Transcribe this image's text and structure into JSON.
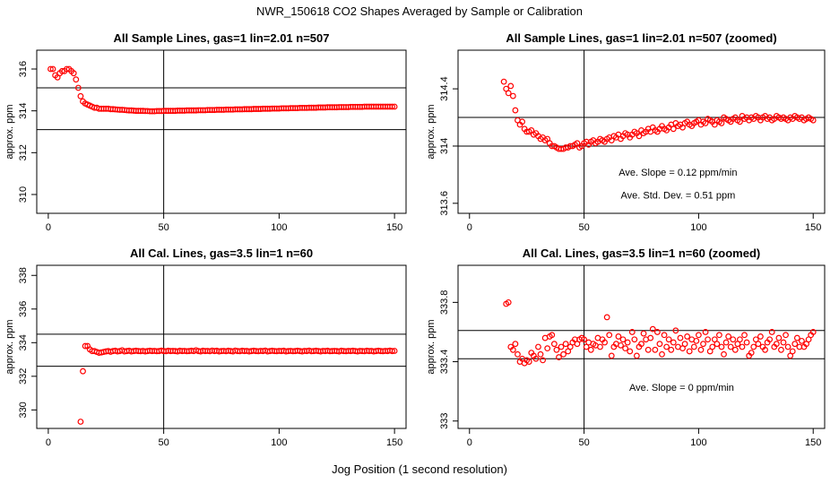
{
  "figure": {
    "title": "NWR_150618  CO2 Shapes Averaged by Sample or Calibration",
    "xlabel": "Jog Position (1 second resolution)"
  },
  "chart_data": [
    {
      "type": "scatter",
      "title": "All Sample Lines, gas=1 lin=2.01 n=507",
      "ylabel": "approx. ppm",
      "xlim": [
        -5,
        155
      ],
      "ylim": [
        309.1,
        316.9
      ],
      "xticks": [
        0,
        50,
        100,
        150
      ],
      "yticks": [
        310,
        312,
        314,
        316
      ],
      "hlines": [
        313.1,
        315.1
      ],
      "vline": 50,
      "marker_color": "#ff0000",
      "annotations": [],
      "x": [
        1,
        2,
        3,
        4,
        5,
        6,
        7,
        8,
        9,
        10,
        11,
        12,
        13,
        14,
        15,
        16,
        17,
        18,
        19,
        20,
        21,
        22,
        23,
        24,
        25,
        26,
        27,
        28,
        29,
        30,
        31,
        32,
        33,
        34,
        35,
        36,
        37,
        38,
        39,
        40,
        41,
        42,
        43,
        44,
        45,
        46,
        47,
        48,
        49,
        50,
        51,
        52,
        53,
        54,
        55,
        56,
        57,
        58,
        59,
        60,
        61,
        62,
        63,
        64,
        65,
        66,
        67,
        68,
        69,
        70,
        71,
        72,
        73,
        74,
        75,
        76,
        77,
        78,
        79,
        80,
        81,
        82,
        83,
        84,
        85,
        86,
        87,
        88,
        89,
        90,
        91,
        92,
        93,
        94,
        95,
        96,
        97,
        98,
        99,
        100,
        101,
        102,
        103,
        104,
        105,
        106,
        107,
        108,
        109,
        110,
        111,
        112,
        113,
        114,
        115,
        116,
        117,
        118,
        119,
        120,
        121,
        122,
        123,
        124,
        125,
        126,
        127,
        128,
        129,
        130,
        131,
        132,
        133,
        134,
        135,
        136,
        137,
        138,
        139,
        140,
        141,
        142,
        143,
        144,
        145,
        146,
        147,
        148,
        149,
        150
      ],
      "y": [
        316.0,
        316.0,
        315.7,
        315.6,
        315.8,
        315.9,
        315.9,
        316.0,
        316.0,
        315.9,
        315.8,
        315.5,
        315.1,
        314.7,
        314.45,
        314.35,
        314.3,
        314.25,
        314.2,
        314.15,
        314.15,
        314.1,
        314.1,
        314.1,
        314.1,
        314.1,
        314.08,
        314.08,
        314.07,
        314.06,
        314.05,
        314.05,
        314.04,
        314.03,
        314.02,
        314.02,
        314.01,
        314.0,
        314.0,
        314.0,
        314.0,
        313.99,
        313.99,
        313.98,
        313.98,
        313.98,
        313.99,
        313.99,
        313.99,
        314.0,
        314.0,
        314.0,
        314.0,
        314.0,
        314.0,
        314.01,
        314.01,
        314.01,
        314.01,
        314.02,
        314.02,
        314.02,
        314.02,
        314.02,
        314.03,
        314.03,
        314.03,
        314.03,
        314.04,
        314.04,
        314.04,
        314.04,
        314.05,
        314.05,
        314.05,
        314.05,
        314.06,
        314.06,
        314.06,
        314.06,
        314.07,
        314.07,
        314.07,
        314.07,
        314.08,
        314.08,
        314.08,
        314.08,
        314.09,
        314.09,
        314.09,
        314.09,
        314.1,
        314.1,
        314.1,
        314.1,
        314.11,
        314.11,
        314.11,
        314.11,
        314.12,
        314.12,
        314.12,
        314.12,
        314.13,
        314.13,
        314.13,
        314.13,
        314.14,
        314.14,
        314.14,
        314.14,
        314.15,
        314.15,
        314.15,
        314.15,
        314.16,
        314.16,
        314.16,
        314.16,
        314.17,
        314.17,
        314.17,
        314.17,
        314.17,
        314.18,
        314.18,
        314.18,
        314.18,
        314.18,
        314.19,
        314.19,
        314.19,
        314.19,
        314.19,
        314.19,
        314.2,
        314.2,
        314.2,
        314.2,
        314.2,
        314.2,
        314.2,
        314.2,
        314.2,
        314.2,
        314.2,
        314.2,
        314.2,
        314.2
      ]
    },
    {
      "type": "scatter",
      "title": "All Sample Lines, gas=1 lin=2.01 n=507 (zoomed)",
      "ylabel": "approx. ppm",
      "xlim": [
        -5,
        155
      ],
      "ylim": [
        313.53,
        314.67
      ],
      "xticks": [
        0,
        50,
        100,
        150
      ],
      "yticks": [
        313.6,
        314.0,
        314.4
      ],
      "hlines": [
        314.0,
        314.2
      ],
      "vline": 50,
      "marker_color": "#ff0000",
      "annotations": [
        "Ave. Slope =  0.12  ppm/min",
        "Ave. Std. Dev. =  0.51  ppm"
      ],
      "x": [
        15,
        16,
        17,
        18,
        19,
        20,
        21,
        22,
        23,
        24,
        25,
        26,
        27,
        28,
        29,
        30,
        31,
        32,
        33,
        34,
        35,
        36,
        37,
        38,
        39,
        40,
        41,
        42,
        43,
        44,
        45,
        46,
        47,
        48,
        49,
        50,
        51,
        52,
        53,
        54,
        55,
        56,
        57,
        58,
        59,
        60,
        61,
        62,
        63,
        64,
        65,
        66,
        67,
        68,
        69,
        70,
        71,
        72,
        73,
        74,
        75,
        76,
        77,
        78,
        79,
        80,
        81,
        82,
        83,
        84,
        85,
        86,
        87,
        88,
        89,
        90,
        91,
        92,
        93,
        94,
        95,
        96,
        97,
        98,
        99,
        100,
        101,
        102,
        103,
        104,
        105,
        106,
        107,
        108,
        109,
        110,
        111,
        112,
        113,
        114,
        115,
        116,
        117,
        118,
        119,
        120,
        121,
        122,
        123,
        124,
        125,
        126,
        127,
        128,
        129,
        130,
        131,
        132,
        133,
        134,
        135,
        136,
        137,
        138,
        139,
        140,
        141,
        142,
        143,
        144,
        145,
        146,
        147,
        148,
        149,
        150
      ],
      "y": [
        314.45,
        314.4,
        314.37,
        314.42,
        314.35,
        314.25,
        314.18,
        314.15,
        314.17,
        314.12,
        314.1,
        314.1,
        314.11,
        314.08,
        314.09,
        314.07,
        314.05,
        314.06,
        314.04,
        314.05,
        314.02,
        314.0,
        314.0,
        313.99,
        313.98,
        313.98,
        313.98,
        313.99,
        313.99,
        314.0,
        314.0,
        314.01,
        314.02,
        313.99,
        314.0,
        314.02,
        314.03,
        314.01,
        314.03,
        314.04,
        314.02,
        314.03,
        314.05,
        314.04,
        314.03,
        314.05,
        314.06,
        314.04,
        314.07,
        314.06,
        314.08,
        314.05,
        314.07,
        314.09,
        314.08,
        314.06,
        314.08,
        314.1,
        314.09,
        314.07,
        314.11,
        314.09,
        314.1,
        314.12,
        314.1,
        314.13,
        314.11,
        314.1,
        314.12,
        314.14,
        314.12,
        314.11,
        314.13,
        314.15,
        314.12,
        314.16,
        314.14,
        314.15,
        314.13,
        314.16,
        314.17,
        314.15,
        314.14,
        314.16,
        314.17,
        314.18,
        314.15,
        314.17,
        314.16,
        314.19,
        314.18,
        314.17,
        314.15,
        314.18,
        314.17,
        314.16,
        314.2,
        314.19,
        314.18,
        314.17,
        314.19,
        314.2,
        314.18,
        314.17,
        314.21,
        314.19,
        314.2,
        314.18,
        314.2,
        314.19,
        314.21,
        314.2,
        314.18,
        314.2,
        314.21,
        314.19,
        314.2,
        314.18,
        314.19,
        314.21,
        314.2,
        314.19,
        314.2,
        314.19,
        314.18,
        314.2,
        314.19,
        314.21,
        314.2,
        314.19,
        314.2,
        314.18,
        314.19,
        314.2,
        314.19,
        314.18
      ]
    },
    {
      "type": "scatter",
      "title": "All Cal. Lines, gas=3.5 lin=1 n=60",
      "ylabel": "approx. ppm",
      "xlim": [
        -5,
        155
      ],
      "ylim": [
        328.9,
        338.6
      ],
      "xticks": [
        0,
        50,
        100,
        150
      ],
      "yticks": [
        330,
        332,
        334,
        336,
        338
      ],
      "hlines": [
        332.6,
        334.5
      ],
      "vline": 50,
      "marker_color": "#ff0000",
      "annotations": [],
      "x": [
        14,
        15,
        16,
        17,
        18,
        19,
        20,
        21,
        22,
        23,
        24,
        25,
        26,
        27,
        28,
        29,
        30,
        31,
        32,
        33,
        34,
        35,
        36,
        37,
        38,
        39,
        40,
        41,
        42,
        43,
        44,
        45,
        46,
        47,
        48,
        49,
        50,
        51,
        52,
        53,
        54,
        55,
        56,
        57,
        58,
        59,
        60,
        61,
        62,
        63,
        64,
        65,
        66,
        67,
        68,
        69,
        70,
        71,
        72,
        73,
        74,
        75,
        76,
        77,
        78,
        79,
        80,
        81,
        82,
        83,
        84,
        85,
        86,
        87,
        88,
        89,
        90,
        91,
        92,
        93,
        94,
        95,
        96,
        97,
        98,
        99,
        100,
        101,
        102,
        103,
        104,
        105,
        106,
        107,
        108,
        109,
        110,
        111,
        112,
        113,
        114,
        115,
        116,
        117,
        118,
        119,
        120,
        121,
        122,
        123,
        124,
        125,
        126,
        127,
        128,
        129,
        130,
        131,
        132,
        133,
        134,
        135,
        136,
        137,
        138,
        139,
        140,
        141,
        142,
        143,
        144,
        145,
        146,
        147,
        148,
        149,
        150
      ],
      "y": [
        329.3,
        332.3,
        333.8,
        333.8,
        333.6,
        333.5,
        333.5,
        333.45,
        333.4,
        333.42,
        333.45,
        333.48,
        333.5,
        333.46,
        333.5,
        333.52,
        333.48,
        333.5,
        333.55,
        333.48,
        333.5,
        333.52,
        333.48,
        333.5,
        333.52,
        333.5,
        333.49,
        333.51,
        333.48,
        333.5,
        333.52,
        333.5,
        333.51,
        333.49,
        333.5,
        333.53,
        333.5,
        333.49,
        333.52,
        333.5,
        333.51,
        333.5,
        333.48,
        333.52,
        333.5,
        333.51,
        333.49,
        333.5,
        333.52,
        333.5,
        333.55,
        333.5,
        333.48,
        333.52,
        333.5,
        333.51,
        333.49,
        333.53,
        333.5,
        333.52,
        333.48,
        333.5,
        333.51,
        333.49,
        333.52,
        333.5,
        333.48,
        333.53,
        333.5,
        333.49,
        333.52,
        333.5,
        333.51,
        333.48,
        333.5,
        333.52,
        333.5,
        333.49,
        333.51,
        333.5,
        333.53,
        333.48,
        333.5,
        333.52,
        333.5,
        333.49,
        333.51,
        333.5,
        333.52,
        333.48,
        333.5,
        333.51,
        333.49,
        333.5,
        333.52,
        333.5,
        333.48,
        333.51,
        333.5,
        333.53,
        333.49,
        333.5,
        333.52,
        333.5,
        333.48,
        333.51,
        333.5,
        333.52,
        333.49,
        333.5,
        333.51,
        333.5,
        333.48,
        333.52,
        333.5,
        333.49,
        333.51,
        333.5,
        333.52,
        333.5,
        333.48,
        333.51,
        333.5,
        333.49,
        333.52,
        333.5,
        333.51,
        333.48,
        333.5,
        333.52,
        333.5,
        333.49,
        333.51,
        333.5,
        333.53,
        333.5,
        333.51
      ]
    },
    {
      "type": "scatter",
      "title": "All Cal. Lines, gas=3.5 lin=1 n=60 (zoomed)",
      "ylabel": "approx. ppm",
      "xlim": [
        -5,
        155
      ],
      "ylim": [
        332.95,
        334.05
      ],
      "xticks": [
        0,
        50,
        100,
        150
      ],
      "yticks": [
        333.0,
        333.4,
        333.8
      ],
      "hlines": [
        333.42,
        333.61
      ],
      "vline": 50,
      "marker_color": "#ff0000",
      "annotations": [
        "Ave. Slope =  0  ppm/min"
      ],
      "x": [
        16,
        17,
        18,
        19,
        20,
        21,
        22,
        23,
        24,
        25,
        26,
        27,
        28,
        29,
        30,
        31,
        32,
        33,
        34,
        35,
        36,
        37,
        38,
        39,
        40,
        41,
        42,
        43,
        44,
        45,
        46,
        47,
        48,
        49,
        50,
        51,
        52,
        53,
        54,
        55,
        56,
        57,
        58,
        59,
        60,
        61,
        62,
        63,
        64,
        65,
        66,
        67,
        68,
        69,
        70,
        71,
        72,
        73,
        74,
        75,
        76,
        77,
        78,
        79,
        80,
        81,
        82,
        83,
        84,
        85,
        86,
        87,
        88,
        89,
        90,
        91,
        92,
        93,
        94,
        95,
        96,
        97,
        98,
        99,
        100,
        101,
        102,
        103,
        104,
        105,
        106,
        107,
        108,
        109,
        110,
        111,
        112,
        113,
        114,
        115,
        116,
        117,
        118,
        119,
        120,
        121,
        122,
        123,
        124,
        125,
        126,
        127,
        128,
        129,
        130,
        131,
        132,
        133,
        134,
        135,
        136,
        137,
        138,
        139,
        140,
        141,
        142,
        143,
        144,
        145,
        146,
        147,
        148,
        149,
        150
      ],
      "y": [
        333.79,
        333.8,
        333.5,
        333.48,
        333.52,
        333.45,
        333.4,
        333.42,
        333.39,
        333.41,
        333.4,
        333.46,
        333.44,
        333.42,
        333.5,
        333.45,
        333.41,
        333.56,
        333.49,
        333.57,
        333.58,
        333.52,
        333.48,
        333.43,
        333.5,
        333.45,
        333.52,
        333.47,
        333.5,
        333.53,
        333.55,
        333.52,
        333.55,
        333.56,
        333.55,
        333.5,
        333.53,
        333.48,
        333.52,
        333.51,
        333.56,
        333.5,
        333.55,
        333.53,
        333.7,
        333.58,
        333.44,
        333.5,
        333.52,
        333.57,
        333.51,
        333.55,
        333.49,
        333.53,
        333.47,
        333.6,
        333.55,
        333.44,
        333.5,
        333.52,
        333.59,
        333.55,
        333.48,
        333.56,
        333.62,
        333.48,
        333.6,
        333.52,
        333.45,
        333.58,
        333.5,
        333.55,
        333.48,
        333.53,
        333.61,
        333.5,
        333.56,
        333.49,
        333.52,
        333.57,
        333.47,
        333.55,
        333.5,
        333.54,
        333.58,
        333.48,
        333.52,
        333.6,
        333.55,
        333.47,
        333.5,
        333.55,
        333.52,
        333.58,
        333.5,
        333.45,
        333.53,
        333.57,
        333.5,
        333.55,
        333.48,
        333.52,
        333.55,
        333.5,
        333.58,
        333.53,
        333.44,
        333.46,
        333.5,
        333.55,
        333.52,
        333.57,
        333.5,
        333.48,
        333.53,
        333.55,
        333.6,
        333.5,
        333.52,
        333.56,
        333.48,
        333.53,
        333.58,
        333.5,
        333.44,
        333.47,
        333.52,
        333.56,
        333.5,
        333.54,
        333.5,
        333.52,
        333.55,
        333.58,
        333.6
      ]
    }
  ]
}
